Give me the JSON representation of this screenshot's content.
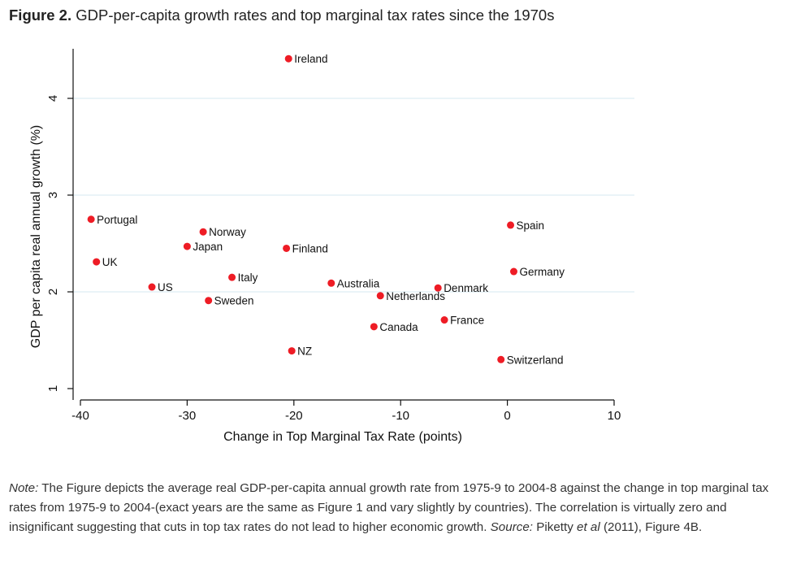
{
  "figure": {
    "label": "Figure 2.",
    "title": "GDP-per-capita growth rates and top marginal tax rates since the 1970s"
  },
  "note": {
    "note_label": "Note:",
    "text_1": " The Figure depicts the average real GDP-per-capita annual growth rate from 1975-9 to 2004-8 against the change in top marginal tax rates from 1975-9 to 2004-(exact years are the same as Figure 1 and vary slightly by countries). The correlation is virtually zero and insignificant suggesting that cuts in top tax rates do not lead to higher economic growth. ",
    "source_label": "Source:",
    "text_2": " Piketty ",
    "et_al": "et al",
    "text_3": " (2011), Figure 4B."
  },
  "colors": {
    "point": "#ee1c25",
    "grid": "#d6e8f2",
    "axis": "#111111"
  },
  "chart_data": {
    "type": "scatter",
    "title": "",
    "xlabel": "Change in Top Marginal Tax Rate (points)",
    "ylabel": "GDP per capita real annual growth (%)",
    "xlim": [
      -40,
      10
    ],
    "ylim": [
      1,
      4.5
    ],
    "xticks": [
      -40,
      -30,
      -20,
      -10,
      0,
      10
    ],
    "yticks": [
      1,
      2,
      3,
      4
    ],
    "grid": true,
    "points": [
      {
        "label": "Ireland",
        "x": -20.5,
        "y": 4.41
      },
      {
        "label": "Portugal",
        "x": -39.0,
        "y": 2.75
      },
      {
        "label": "Norway",
        "x": -28.5,
        "y": 2.62
      },
      {
        "label": "Japan",
        "x": -30.0,
        "y": 2.47
      },
      {
        "label": "Finland",
        "x": -20.7,
        "y": 2.45
      },
      {
        "label": "UK",
        "x": -38.5,
        "y": 2.31
      },
      {
        "label": "Italy",
        "x": -25.8,
        "y": 2.15
      },
      {
        "label": "US",
        "x": -33.3,
        "y": 2.05
      },
      {
        "label": "Sweden",
        "x": -28.0,
        "y": 1.91
      },
      {
        "label": "NZ",
        "x": -20.2,
        "y": 1.39
      },
      {
        "label": "Australia",
        "x": -16.5,
        "y": 2.09
      },
      {
        "label": "Netherlands",
        "x": -11.9,
        "y": 1.96
      },
      {
        "label": "Denmark",
        "x": -6.5,
        "y": 2.04
      },
      {
        "label": "Canada",
        "x": -12.5,
        "y": 1.64
      },
      {
        "label": "France",
        "x": -5.9,
        "y": 1.71
      },
      {
        "label": "Spain",
        "x": 0.3,
        "y": 2.69
      },
      {
        "label": "Germany",
        "x": 0.6,
        "y": 2.21
      },
      {
        "label": "Switzerland",
        "x": -0.6,
        "y": 1.3
      }
    ]
  }
}
